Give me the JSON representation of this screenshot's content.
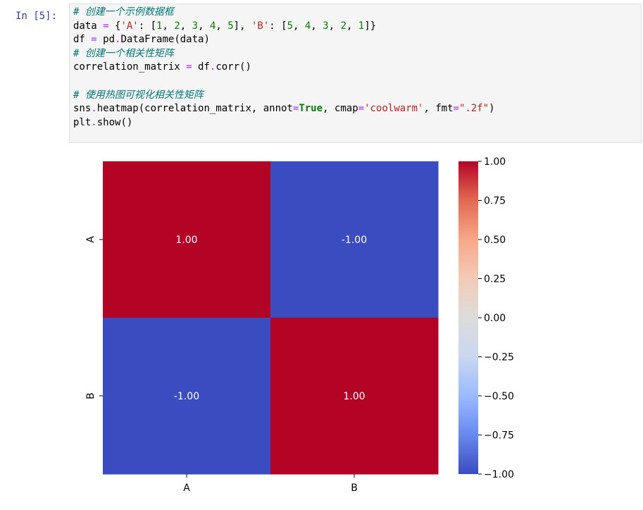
{
  "cell": {
    "prompt": "In [5]:",
    "code_lines": [
      [
        {
          "t": "comment",
          "v": "# 创建一个示例数据框"
        }
      ],
      [
        {
          "t": "plain",
          "v": "data "
        },
        {
          "t": "op",
          "v": "="
        },
        {
          "t": "plain",
          "v": " {"
        },
        {
          "t": "string",
          "v": "'A'"
        },
        {
          "t": "plain",
          "v": ": ["
        },
        {
          "t": "number",
          "v": "1"
        },
        {
          "t": "plain",
          "v": ", "
        },
        {
          "t": "number",
          "v": "2"
        },
        {
          "t": "plain",
          "v": ", "
        },
        {
          "t": "number",
          "v": "3"
        },
        {
          "t": "plain",
          "v": ", "
        },
        {
          "t": "number",
          "v": "4"
        },
        {
          "t": "plain",
          "v": ", "
        },
        {
          "t": "number",
          "v": "5"
        },
        {
          "t": "plain",
          "v": "], "
        },
        {
          "t": "string",
          "v": "'B'"
        },
        {
          "t": "plain",
          "v": ": ["
        },
        {
          "t": "number",
          "v": "5"
        },
        {
          "t": "plain",
          "v": ", "
        },
        {
          "t": "number",
          "v": "4"
        },
        {
          "t": "plain",
          "v": ", "
        },
        {
          "t": "number",
          "v": "3"
        },
        {
          "t": "plain",
          "v": ", "
        },
        {
          "t": "number",
          "v": "2"
        },
        {
          "t": "plain",
          "v": ", "
        },
        {
          "t": "number",
          "v": "1"
        },
        {
          "t": "plain",
          "v": "]}"
        }
      ],
      [
        {
          "t": "plain",
          "v": "df "
        },
        {
          "t": "op",
          "v": "="
        },
        {
          "t": "plain",
          "v": " pd"
        },
        {
          "t": "op",
          "v": "."
        },
        {
          "t": "plain",
          "v": "DataFrame(data)"
        }
      ],
      [
        {
          "t": "comment",
          "v": "# 创建一个相关性矩阵"
        }
      ],
      [
        {
          "t": "plain",
          "v": "correlation_matrix "
        },
        {
          "t": "op",
          "v": "="
        },
        {
          "t": "plain",
          "v": " df"
        },
        {
          "t": "op",
          "v": "."
        },
        {
          "t": "plain",
          "v": "corr()"
        }
      ],
      [],
      [
        {
          "t": "comment",
          "v": "# 使用热图可视化相关性矩阵"
        }
      ],
      [
        {
          "t": "plain",
          "v": "sns"
        },
        {
          "t": "op",
          "v": "."
        },
        {
          "t": "plain",
          "v": "heatmap(correlation_matrix, annot"
        },
        {
          "t": "op",
          "v": "="
        },
        {
          "t": "keyword",
          "v": "True"
        },
        {
          "t": "plain",
          "v": ", cmap"
        },
        {
          "t": "op",
          "v": "="
        },
        {
          "t": "string",
          "v": "'coolwarm'"
        },
        {
          "t": "plain",
          "v": ", fmt"
        },
        {
          "t": "op",
          "v": "="
        },
        {
          "t": "string",
          "v": "\".2f\""
        },
        {
          "t": "plain",
          "v": ")"
        }
      ],
      [
        {
          "t": "plain",
          "v": "plt"
        },
        {
          "t": "op",
          "v": "."
        },
        {
          "t": "plain",
          "v": "show()"
        }
      ]
    ]
  },
  "chart_data": {
    "type": "heatmap",
    "rows": [
      "A",
      "B"
    ],
    "columns": [
      "A",
      "B"
    ],
    "values": [
      [
        1.0,
        -1.0
      ],
      [
        -1.0,
        1.0
      ]
    ],
    "annotations": [
      [
        "1.00",
        "-1.00"
      ],
      [
        "-1.00",
        "1.00"
      ]
    ],
    "colormap": "coolwarm",
    "high_color": "#b40426",
    "low_color": "#3b4cc0",
    "colorbar": {
      "range": [
        -1.0,
        1.0
      ],
      "ticks": [
        1.0,
        0.75,
        0.5,
        0.25,
        0.0,
        -0.25,
        -0.5,
        -0.75,
        -1.0
      ],
      "tick_labels": [
        "1.00",
        "0.75",
        "0.50",
        "0.25",
        "0.00",
        "−0.25",
        "−0.50",
        "−0.75",
        "−1.00"
      ],
      "stops": [
        "#3b4cc0",
        "#6788ee",
        "#9abbff",
        "#c9d7f0",
        "#dddcdc",
        "#f2cbb7",
        "#f7a889",
        "#e26952",
        "#b40426"
      ]
    },
    "title": "",
    "xlabel": "",
    "ylabel": ""
  }
}
